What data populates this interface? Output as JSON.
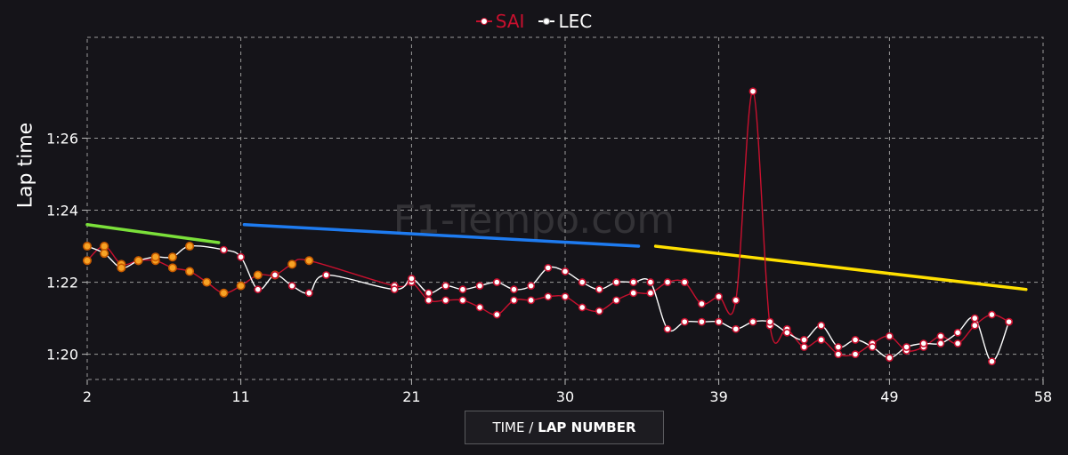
{
  "legend": [
    {
      "label": "SAI",
      "color": "#c8102e"
    },
    {
      "label": "LEC",
      "color": "#ffffff"
    }
  ],
  "axis_toggle": {
    "left": "TIME /",
    "right": "LAP NUMBER"
  },
  "watermark": "F1-Tempo.com",
  "chart_data": {
    "type": "line",
    "ylabel": "Lap time",
    "xlim": [
      2,
      58
    ],
    "ylim": [
      79.3,
      88.8
    ],
    "x_ticks": [
      2,
      11,
      21,
      30,
      39,
      49,
      58
    ],
    "y_ticks": [
      {
        "value": 80,
        "label": "1:20"
      },
      {
        "value": 82,
        "label": "1:22"
      },
      {
        "value": 84,
        "label": "1:24"
      },
      {
        "value": 86,
        "label": "1:26"
      }
    ],
    "grid": true,
    "legend_position": "top-center",
    "series": [
      {
        "name": "SAI",
        "color": "#c8102e",
        "points": [
          [
            2,
            82.6
          ],
          [
            3,
            83.0
          ],
          [
            4,
            82.5
          ],
          [
            5,
            82.6
          ],
          [
            6,
            82.6
          ],
          [
            7,
            82.4
          ],
          [
            8,
            82.3
          ],
          [
            9,
            82.0
          ],
          [
            10,
            81.7
          ],
          [
            11,
            81.9
          ],
          [
            12,
            82.2
          ],
          [
            13,
            82.2
          ],
          [
            14,
            82.5
          ],
          [
            15,
            82.6
          ],
          [
            20,
            81.9
          ],
          [
            21,
            82.0
          ],
          [
            22,
            81.5
          ],
          [
            23,
            81.5
          ],
          [
            24,
            81.5
          ],
          [
            25,
            81.3
          ],
          [
            26,
            81.1
          ],
          [
            27,
            81.5
          ],
          [
            28,
            81.5
          ],
          [
            29,
            81.6
          ],
          [
            30,
            81.6
          ],
          [
            31,
            81.3
          ],
          [
            32,
            81.2
          ],
          [
            33,
            81.5
          ],
          [
            34,
            81.7
          ],
          [
            35,
            81.7
          ],
          [
            36,
            82.0
          ],
          [
            37,
            82.0
          ],
          [
            38,
            81.4
          ],
          [
            39,
            81.6
          ],
          [
            40,
            81.5
          ],
          [
            41,
            87.3
          ],
          [
            42,
            80.8
          ],
          [
            43,
            80.7
          ],
          [
            44,
            80.2
          ],
          [
            45,
            80.4
          ],
          [
            46,
            80.0
          ],
          [
            47,
            80.0
          ],
          [
            48,
            80.3
          ],
          [
            49,
            80.5
          ],
          [
            50,
            80.1
          ],
          [
            51,
            80.2
          ],
          [
            52,
            80.5
          ],
          [
            53,
            80.3
          ],
          [
            54,
            80.8
          ],
          [
            55,
            81.1
          ],
          [
            56,
            80.9
          ]
        ],
        "highlighted_points": [
          [
            2,
            82.6
          ],
          [
            3,
            83.0
          ],
          [
            4,
            82.5
          ],
          [
            5,
            82.6
          ],
          [
            6,
            82.6
          ],
          [
            7,
            82.4
          ],
          [
            8,
            82.3
          ],
          [
            9,
            82.0
          ],
          [
            10,
            81.7
          ],
          [
            11,
            81.9
          ],
          [
            12,
            82.2
          ],
          [
            13,
            82.2
          ],
          [
            14,
            82.5
          ],
          [
            15,
            82.6
          ]
        ]
      },
      {
        "name": "LEC",
        "color": "#ffffff",
        "points": [
          [
            2,
            83.0
          ],
          [
            3,
            82.8
          ],
          [
            4,
            82.4
          ],
          [
            5,
            82.6
          ],
          [
            6,
            82.7
          ],
          [
            7,
            82.7
          ],
          [
            8,
            83.0
          ],
          [
            10,
            82.9
          ],
          [
            11,
            82.7
          ],
          [
            12,
            81.8
          ],
          [
            13,
            82.2
          ],
          [
            14,
            81.9
          ],
          [
            15,
            81.7
          ],
          [
            16,
            82.2
          ],
          [
            20,
            81.8
          ],
          [
            21,
            82.1
          ],
          [
            22,
            81.7
          ],
          [
            23,
            81.9
          ],
          [
            24,
            81.8
          ],
          [
            25,
            81.9
          ],
          [
            26,
            82.0
          ],
          [
            27,
            81.8
          ],
          [
            28,
            81.9
          ],
          [
            29,
            82.4
          ],
          [
            30,
            82.3
          ],
          [
            31,
            82.0
          ],
          [
            32,
            81.8
          ],
          [
            33,
            82.0
          ],
          [
            34,
            82.0
          ],
          [
            35,
            82.0
          ],
          [
            36,
            80.7
          ],
          [
            37,
            80.9
          ],
          [
            38,
            80.9
          ],
          [
            39,
            80.9
          ],
          [
            40,
            80.7
          ],
          [
            41,
            80.9
          ],
          [
            42,
            80.9
          ],
          [
            43,
            80.6
          ],
          [
            44,
            80.4
          ],
          [
            45,
            80.8
          ],
          [
            46,
            80.2
          ],
          [
            47,
            80.4
          ],
          [
            48,
            80.2
          ],
          [
            49,
            79.9
          ],
          [
            50,
            80.2
          ],
          [
            51,
            80.3
          ],
          [
            52,
            80.3
          ],
          [
            53,
            80.6
          ],
          [
            54,
            81.0
          ],
          [
            55,
            79.8
          ],
          [
            56,
            80.9
          ]
        ],
        "highlighted_points": [
          [
            2,
            83.0
          ],
          [
            3,
            82.8
          ],
          [
            4,
            82.4
          ],
          [
            5,
            82.6
          ],
          [
            6,
            82.7
          ],
          [
            7,
            82.7
          ],
          [
            8,
            83.0
          ]
        ]
      }
    ],
    "trend_lines": [
      {
        "color": "#7be03a",
        "from": [
          2,
          83.6
        ],
        "to": [
          9.7,
          83.1
        ]
      },
      {
        "color": "#1e7bf0",
        "from": [
          11.2,
          83.6
        ],
        "to": [
          34.3,
          83.0
        ]
      },
      {
        "color": "#ffe000",
        "from": [
          35.3,
          83.0
        ],
        "to": [
          57.0,
          81.8
        ]
      }
    ]
  }
}
